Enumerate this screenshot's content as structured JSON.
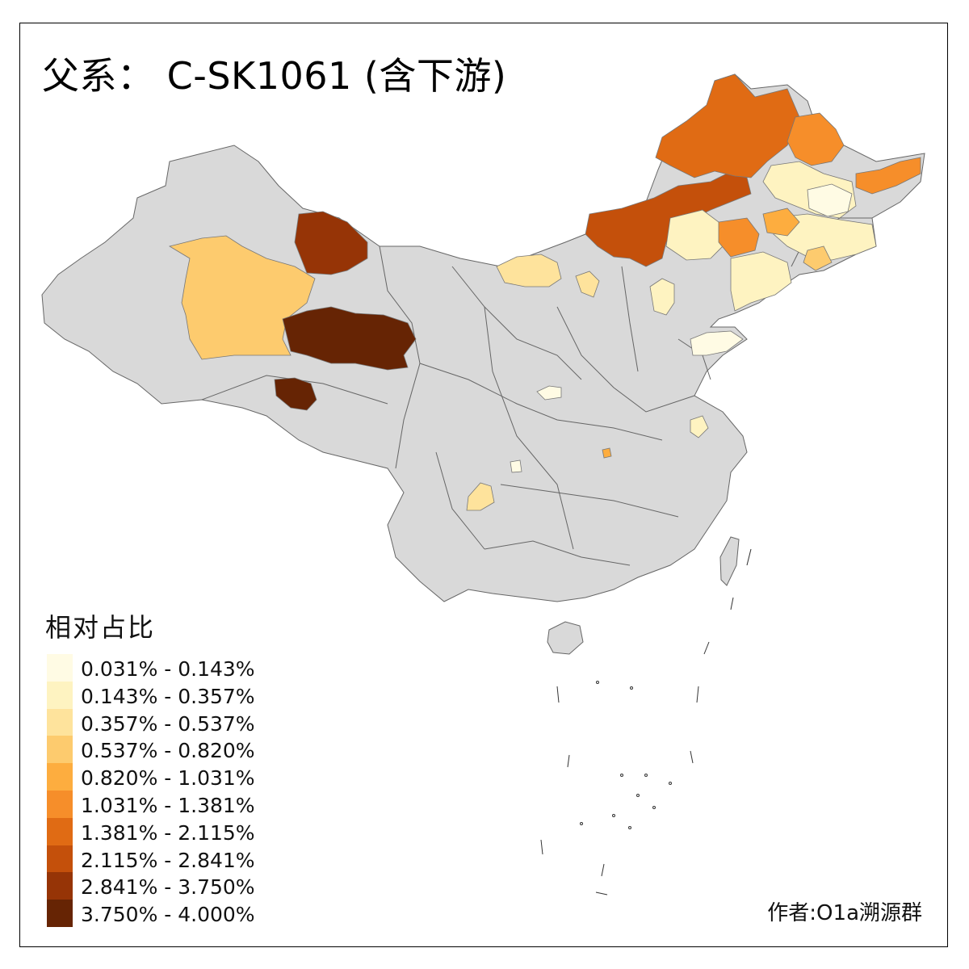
{
  "title": "父系： C-SK1061 (含下游)",
  "legend": {
    "title": "相对占比",
    "bins": [
      {
        "label": "0.031% - 0.143%",
        "color": "#FFFBE4"
      },
      {
        "label": "0.143% - 0.357%",
        "color": "#FEF3C1"
      },
      {
        "label": "0.357% - 0.537%",
        "color": "#FEE39C"
      },
      {
        "label": "0.537% - 0.820%",
        "color": "#FDCB6E"
      },
      {
        "label": "0.820% - 1.031%",
        "color": "#FDAD3F"
      },
      {
        "label": "1.031% - 1.381%",
        "color": "#F68E2A"
      },
      {
        "label": "1.381% - 2.115%",
        "color": "#E06B14"
      },
      {
        "label": "2.115% - 2.841%",
        "color": "#C4500B"
      },
      {
        "label": "2.841% - 3.750%",
        "color": "#963406"
      },
      {
        "label": "3.750% - 4.000%",
        "color": "#662404"
      }
    ]
  },
  "author": "作者:O1a溯源群",
  "colors": {
    "no_data": "#D9D9D9",
    "border": "#666666",
    "frame": "#000000"
  }
}
